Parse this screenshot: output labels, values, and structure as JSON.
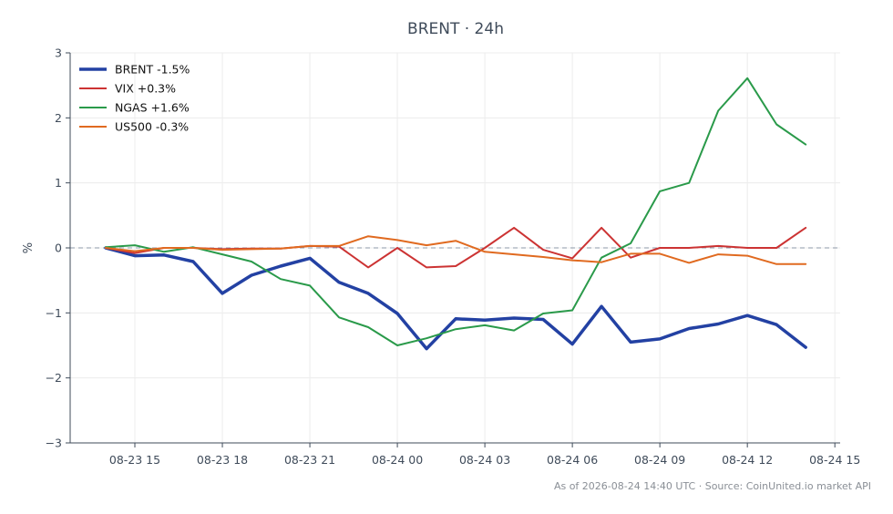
{
  "chart_data": {
    "type": "line",
    "title": "BRENT · 24h",
    "xlabel": "",
    "ylabel": "%",
    "ylim": [
      -3,
      3
    ],
    "yticks": [
      -3,
      -2,
      -1,
      0,
      1,
      2,
      3
    ],
    "ytick_labels": [
      "−3",
      "−2",
      "−1",
      "0",
      "1",
      "2",
      "3"
    ],
    "xlim": [
      0,
      26.4
    ],
    "xticks": [
      1,
      4,
      7,
      10,
      13,
      16,
      19,
      22,
      25
    ],
    "xtick_labels": [
      "08-23 15",
      "08-23 18",
      "08-23 21",
      "08-24 00",
      "08-24 03",
      "08-24 06",
      "08-24 09",
      "08-24 12",
      "08-24 15"
    ],
    "x": [
      0,
      1,
      2,
      3,
      4,
      5,
      6,
      7,
      8,
      9,
      10,
      11,
      12,
      13,
      14,
      15,
      16,
      17,
      18,
      19,
      20,
      21,
      22,
      23,
      24
    ],
    "x_labels_note": "hourly points from 08-23 14 to 08-24 14",
    "grid": true,
    "zero_line": true,
    "legend_position": "top-left",
    "series": [
      {
        "name": "BRENT -1.5%",
        "color": "#2341a3",
        "width": 3.5,
        "values": [
          0,
          -0.12,
          -0.11,
          -0.21,
          -0.7,
          -0.42,
          -0.28,
          -0.16,
          -0.53,
          -0.7,
          -1.01,
          -1.55,
          -1.09,
          -1.11,
          -1.08,
          -1.1,
          -1.48,
          -0.9,
          -1.45,
          -1.4,
          -1.24,
          -1.17,
          -1.04,
          -1.18,
          -1.53
        ]
      },
      {
        "name": "VIX +0.3%",
        "color": "#cc3333",
        "width": 2,
        "values": [
          0,
          -0.08,
          0.0,
          0.0,
          -0.02,
          -0.01,
          -0.01,
          0.03,
          0.02,
          -0.3,
          0.0,
          -0.3,
          -0.28,
          0.0,
          0.31,
          -0.03,
          -0.16,
          0.31,
          -0.15,
          0.0,
          0.0,
          0.03,
          0.0,
          0.0,
          0.31
        ]
      },
      {
        "name": "NGAS +1.6%",
        "color": "#2a9a4a",
        "width": 2,
        "values": [
          0.01,
          0.04,
          -0.06,
          0.01,
          -0.1,
          -0.21,
          -0.48,
          -0.58,
          -1.07,
          -1.22,
          -1.5,
          -1.39,
          -1.25,
          -1.19,
          -1.27,
          -1.01,
          -0.96,
          -0.15,
          0.07,
          0.87,
          1.0,
          2.11,
          2.61,
          1.9,
          1.59
        ]
      },
      {
        "name": "US500 -0.3%",
        "color": "#e06a20",
        "width": 2,
        "values": [
          0,
          -0.05,
          0.0,
          0.0,
          -0.03,
          -0.02,
          -0.01,
          0.03,
          0.03,
          0.18,
          0.12,
          0.04,
          0.11,
          -0.06,
          -0.1,
          -0.14,
          -0.19,
          -0.22,
          -0.09,
          -0.09,
          -0.23,
          -0.1,
          -0.12,
          -0.25,
          -0.25
        ]
      }
    ],
    "footer": "As of 2026-08-24 14:40 UTC · Source: CoinUnited.io market API"
  }
}
